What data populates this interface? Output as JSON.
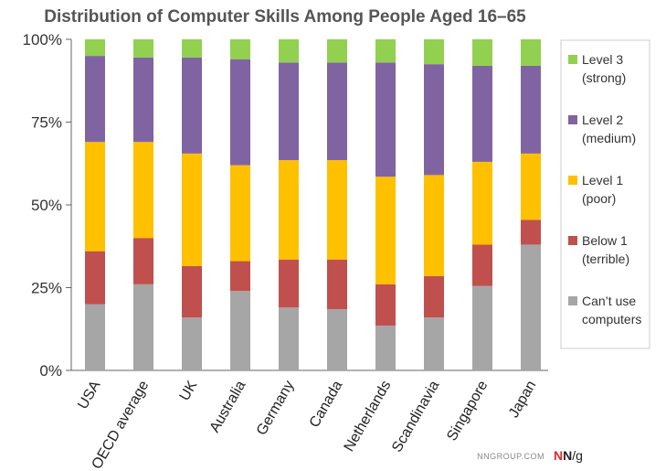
{
  "chart_data": {
    "type": "bar",
    "stacked": true,
    "title": "Distribution of Computer Skills Among People Aged 16–65",
    "xlabel": "",
    "ylabel": "",
    "ylim": [
      0,
      100
    ],
    "yticks": [
      0,
      25,
      50,
      75,
      100
    ],
    "ytick_labels": [
      "0%",
      "25%",
      "50%",
      "75%",
      "100%"
    ],
    "grid": false,
    "legend_position": "right",
    "categories": [
      "USA",
      "OECD average",
      "UK",
      "Australia",
      "Germany",
      "Canada",
      "Netherlands",
      "Scandinavia",
      "Singapore",
      "Japan"
    ],
    "series": [
      {
        "name": "Can’t use computers",
        "legend_lines": [
          "Can’t use",
          "computers"
        ],
        "color": "#a6a6a6",
        "values": [
          20,
          26,
          16,
          24,
          19,
          18.5,
          13.5,
          16,
          25.5,
          38
        ]
      },
      {
        "name": "Below 1 (terrible)",
        "legend_lines": [
          "Below 1",
          "(terrible)"
        ],
        "color": "#c0504d",
        "values": [
          16,
          14,
          15.5,
          9,
          14.5,
          15,
          12.5,
          12.5,
          12.5,
          7.5
        ]
      },
      {
        "name": "Level 1 (poor)",
        "legend_lines": [
          "Level 1",
          "(poor)"
        ],
        "color": "#ffc000",
        "values": [
          33,
          29,
          34,
          29,
          30,
          30,
          32.5,
          30.5,
          25,
          20
        ]
      },
      {
        "name": "Level 2 (medium)",
        "legend_lines": [
          "Level 2",
          "(medium)"
        ],
        "color": "#8064a2",
        "values": [
          26,
          25.5,
          29,
          32,
          29.5,
          29.5,
          34.5,
          33.5,
          29,
          26.5
        ]
      },
      {
        "name": "Level 3 (strong)",
        "legend_lines": [
          "Level 3",
          "(strong)"
        ],
        "color": "#92d050",
        "values": [
          5,
          5.5,
          5.5,
          6,
          7,
          7,
          7,
          7.5,
          8,
          8
        ]
      }
    ]
  },
  "footer": {
    "site": "NNGROUP.COM",
    "logo_n1": "N",
    "logo_n2": "N",
    "logo_g": "/g",
    "logo_red": "#e0292b",
    "logo_dark": "#222222"
  }
}
